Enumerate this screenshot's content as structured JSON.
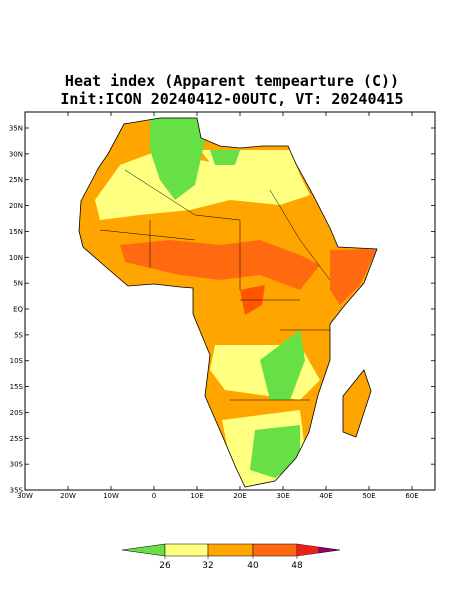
{
  "header": {
    "title_line1": "Heat index (Apparent tempearture (C))",
    "title_line2": "Init:ICON 20240412-00UTC, VT: 20240415"
  },
  "map": {
    "lat_labels": [
      "35N",
      "30N",
      "25N",
      "20N",
      "15N",
      "10N",
      "5N",
      "EQ",
      "5S",
      "10S",
      "15S",
      "20S",
      "25S",
      "30S",
      "35S"
    ],
    "lon_labels": [
      "30W",
      "20W",
      "10W",
      "0",
      "10E",
      "20E",
      "30E",
      "40E",
      "50E",
      "60E"
    ]
  },
  "colorbar": {
    "ticks": [
      26,
      32,
      40,
      48
    ]
  }
}
